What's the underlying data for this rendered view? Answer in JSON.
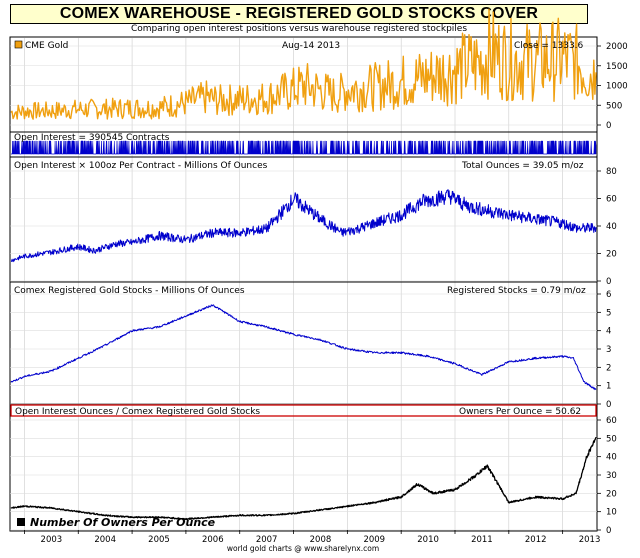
{
  "header": {
    "title": "COMEX WAREHOUSE - REGISTERED GOLD STOCKS COVER",
    "subtitle": "Comparing open interest positions versus warehouse registered stockpiles",
    "footer": "world gold charts @ www.sharelynx.com"
  },
  "colors": {
    "gold": "#f0a010",
    "open_interest": "#0000cc",
    "oz_line": "#0000cc",
    "registered": "#0000cc",
    "owners": "#000000",
    "highlight_border": "#cc0000",
    "header_bg": "#ffffcc"
  },
  "chart_data": [
    {
      "type": "line",
      "panel": "gold",
      "legend_label": "CME Gold",
      "date_label": "Aug-14  2013",
      "value_label": "Close = 1333.6",
      "x_unit": "year",
      "x": [
        2002.75,
        2003.0,
        2003.5,
        2004.0,
        2004.5,
        2005.0,
        2005.5,
        2006.0,
        2006.4,
        2006.6,
        2007.0,
        2007.5,
        2008.0,
        2008.2,
        2008.8,
        2009.0,
        2009.5,
        2010.0,
        2010.5,
        2011.0,
        2011.5,
        2011.65,
        2012.0,
        2012.5,
        2013.0,
        2013.3,
        2013.5,
        2013.62
      ],
      "values": [
        320,
        350,
        360,
        400,
        410,
        430,
        440,
        560,
        700,
        620,
        650,
        690,
        900,
        1000,
        750,
        900,
        960,
        1100,
        1230,
        1400,
        1600,
        1850,
        1650,
        1600,
        1680,
        1550,
        1300,
        1333.6
      ],
      "ylim": [
        0,
        2000
      ],
      "yticks": [
        0,
        500,
        1000,
        1500,
        2000
      ]
    },
    {
      "type": "area",
      "panel": "open_interest",
      "legend_label": "Open Interest = 390545 Contracts",
      "x_unit": "year",
      "x": [
        2002.75,
        2003.5,
        2004.5,
        2005.5,
        2006.5,
        2007.5,
        2008.5,
        2009.5,
        2010.5,
        2011.5,
        2012.5,
        2013.62
      ],
      "values": [
        250000,
        290000,
        300000,
        330000,
        350000,
        430000,
        320000,
        380000,
        520000,
        480000,
        430000,
        390545
      ]
    },
    {
      "type": "line",
      "panel": "oz_per_contract",
      "legend_label": "Open Interest × 100oz Per Contract  -  Millions Of Ounces",
      "value_label": "Total Ounces = 39.05 m/oz",
      "x_unit": "year",
      "x": [
        2002.75,
        2003.0,
        2003.5,
        2004.0,
        2004.3,
        2004.7,
        2005.0,
        2005.5,
        2006.0,
        2006.5,
        2007.0,
        2007.5,
        2007.9,
        2008.0,
        2008.5,
        2008.9,
        2009.2,
        2009.5,
        2010.0,
        2010.4,
        2010.9,
        2011.2,
        2011.5,
        2012.0,
        2012.5,
        2013.0,
        2013.3,
        2013.62
      ],
      "values": [
        15,
        18,
        21,
        25,
        22,
        27,
        28,
        33,
        30,
        35,
        35,
        38,
        55,
        60,
        45,
        35,
        38,
        42,
        48,
        58,
        62,
        55,
        52,
        48,
        45,
        42,
        38,
        39.05
      ],
      "ylim": [
        0,
        80
      ],
      "yticks": [
        0,
        20,
        40,
        60,
        80
      ]
    },
    {
      "type": "line",
      "panel": "registered",
      "legend_label": "Comex Registered Gold Stocks  -  Millions Of Ounces",
      "value_label": "Registered Stocks = 0.79 m/oz",
      "x_unit": "year",
      "x": [
        2002.75,
        2003.0,
        2003.5,
        2004.0,
        2004.5,
        2005.0,
        2005.5,
        2006.0,
        2006.5,
        2007.0,
        2007.5,
        2008.0,
        2008.5,
        2009.0,
        2009.5,
        2010.0,
        2010.5,
        2011.0,
        2011.5,
        2012.0,
        2012.5,
        2013.0,
        2013.2,
        2013.4,
        2013.62
      ],
      "values": [
        1.2,
        1.5,
        1.8,
        2.5,
        3.2,
        4.0,
        4.2,
        4.8,
        5.4,
        4.5,
        4.2,
        3.8,
        3.5,
        3.0,
        2.8,
        2.8,
        2.6,
        2.2,
        1.6,
        2.3,
        2.5,
        2.6,
        2.5,
        1.2,
        0.79
      ],
      "ylim": [
        0,
        6
      ],
      "yticks": [
        0,
        1,
        2,
        3,
        4,
        5,
        6
      ]
    },
    {
      "type": "line",
      "panel": "owners",
      "legend_label": "Open Interest Ounces / Comex Registered Gold Stocks",
      "value_label": "Owners Per Ounce = 50.62",
      "series_label": "Number Of Owners Per Ounce",
      "x_unit": "year",
      "x": [
        2002.75,
        2003.0,
        2003.5,
        2004.0,
        2004.5,
        2005.0,
        2005.5,
        2006.0,
        2006.5,
        2007.0,
        2007.5,
        2008.0,
        2008.5,
        2008.8,
        2009.0,
        2009.5,
        2010.0,
        2010.3,
        2010.6,
        2011.0,
        2011.4,
        2011.6,
        2012.0,
        2012.5,
        2013.0,
        2013.25,
        2013.45,
        2013.62
      ],
      "values": [
        12,
        13,
        12,
        10,
        8,
        7,
        7,
        6,
        7,
        8,
        8,
        9,
        11,
        12,
        13,
        15,
        18,
        25,
        20,
        22,
        30,
        35,
        15,
        18,
        17,
        20,
        40,
        50.62
      ],
      "ylim": [
        0,
        60
      ],
      "yticks": [
        0,
        10,
        20,
        30,
        40,
        50,
        60
      ]
    }
  ],
  "x_axis": {
    "min": 2002.75,
    "max": 2013.62,
    "tick_labels": [
      "2003",
      "2004",
      "2005",
      "2006",
      "2007",
      "2008",
      "2009",
      "2010",
      "2011",
      "2012",
      "2013"
    ]
  }
}
